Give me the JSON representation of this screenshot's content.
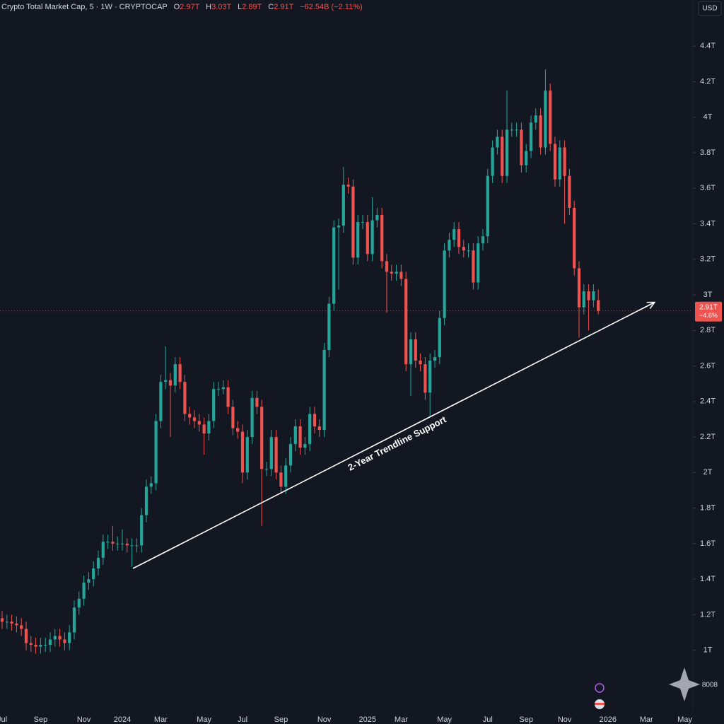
{
  "chart_data": {
    "type": "candlestick",
    "title": "Crypto Total Market Cap, 5 · 1W · CRYPTOCAP",
    "legend_labels": [
      {
        "key": "O",
        "value": "2.97T"
      },
      {
        "key": "H",
        "value": "3.03T"
      },
      {
        "key": "L",
        "value": "2.89T"
      },
      {
        "key": "C",
        "value": "2.91T"
      }
    ],
    "change_label": "−62.54B (−2.11%)",
    "currency": "USD",
    "last_price_label": "2.91T",
    "last_price_change": "−4.6%",
    "corner_label": "8008",
    "annotation": "2-Year Trendline Support",
    "up_color": "#26a69a",
    "down_color": "#ef5350",
    "grid": false,
    "ylim": [
      0.68,
      4.66
    ],
    "yticks": [
      {
        "value": 1,
        "label": "1T"
      },
      {
        "value": 1.2,
        "label": "1.2T"
      },
      {
        "value": 1.4,
        "label": "1.4T"
      },
      {
        "value": 1.6,
        "label": "1.6T"
      },
      {
        "value": 1.8,
        "label": "1.8T"
      },
      {
        "value": 2,
        "label": "2T"
      },
      {
        "value": 2.2,
        "label": "2.2T"
      },
      {
        "value": 2.4,
        "label": "2.4T"
      },
      {
        "value": 2.6,
        "label": "2.6T"
      },
      {
        "value": 2.8,
        "label": "2.8T"
      },
      {
        "value": 3,
        "label": "3T"
      },
      {
        "value": 3.2,
        "label": "3.2T"
      },
      {
        "value": 3.4,
        "label": "3.4T"
      },
      {
        "value": 3.6,
        "label": "3.6T"
      },
      {
        "value": 3.8,
        "label": "3.8T"
      },
      {
        "value": 4,
        "label": "4T"
      },
      {
        "value": 4.2,
        "label": "4.2T"
      },
      {
        "value": 4.4,
        "label": "4.4T"
      }
    ],
    "categories": [
      "Jul",
      null,
      null,
      null,
      null,
      null,
      null,
      null,
      "Sep",
      null,
      null,
      null,
      null,
      null,
      null,
      null,
      null,
      "Nov",
      null,
      null,
      null,
      null,
      null,
      null,
      null,
      "2024",
      null,
      null,
      null,
      null,
      null,
      null,
      null,
      "Mar",
      null,
      null,
      null,
      null,
      null,
      null,
      null,
      null,
      "May",
      null,
      null,
      null,
      null,
      null,
      null,
      null,
      "Jul",
      null,
      null,
      null,
      null,
      null,
      null,
      null,
      "Sep",
      null,
      null,
      null,
      null,
      null,
      null,
      null,
      null,
      "Nov",
      null,
      null,
      null,
      null,
      null,
      null,
      null,
      null,
      "2025",
      null,
      null,
      null,
      null,
      null,
      null,
      "Mar",
      null,
      null,
      null,
      null,
      null,
      null,
      null,
      null,
      "May",
      null,
      null,
      null,
      null,
      null,
      null,
      null,
      null,
      "Jul",
      null,
      null,
      null,
      null,
      null,
      null,
      null,
      "Sep",
      null,
      null,
      null,
      null,
      null,
      null,
      null,
      "Nov",
      null,
      null,
      null,
      null,
      null,
      null,
      null,
      null,
      "2026",
      null,
      null,
      null,
      null,
      null,
      null,
      null,
      "Mar",
      null,
      null,
      null,
      null,
      null,
      null,
      null,
      "May"
    ],
    "open": [
      1.18,
      1.16,
      1.16,
      1.15,
      1.14,
      1.12,
      1.04,
      1.03,
      1.02,
      1.03,
      1.03,
      1.06,
      1.08,
      1.06,
      1.04,
      1.1,
      1.24,
      1.29,
      1.38,
      1.4,
      1.46,
      1.52,
      1.61,
      1.61,
      1.6,
      1.6,
      1.6,
      1.59,
      1.59,
      1.59,
      1.76,
      1.92,
      1.94,
      2.29,
      2.51,
      2.52,
      2.49,
      2.61,
      2.51,
      2.33,
      2.31,
      2.29,
      2.27,
      2.22,
      2.29,
      2.47,
      2.47,
      2.48,
      2.37,
      2.25,
      2.23,
      2.0,
      2.2,
      2.42,
      2.37,
      2.02,
      2.02,
      2.2,
      2.0,
      1.92,
      2.04,
      2.16,
      2.26,
      2.14,
      2.16,
      2.33,
      2.26,
      2.24,
      2.69,
      2.95,
      3.38,
      3.39,
      3.62,
      3.61,
      3.21,
      3.41,
      3.41,
      3.23,
      3.42,
      3.45,
      3.19,
      3.13,
      3.12,
      3.13,
      3.09,
      2.61,
      2.75,
      2.63,
      2.61,
      2.45,
      2.63,
      2.65,
      2.87,
      3.25,
      3.31,
      3.37,
      3.27,
      3.25,
      3.25,
      3.07,
      3.29,
      3.33,
      3.67,
      3.83,
      3.89,
      3.67,
      3.93,
      3.93,
      3.93,
      3.73,
      3.81,
      3.97,
      4.01,
      3.83,
      4.15,
      3.85,
      3.65,
      3.83,
      3.67,
      3.49,
      3.15,
      2.93,
      3.02,
      2.97,
      2.97,
      null,
      null,
      null,
      null,
      null,
      null,
      null,
      null,
      null,
      null,
      null,
      null,
      null,
      null,
      null,
      null,
      null,
      null
    ],
    "high": [
      1.22,
      1.2,
      1.2,
      1.19,
      1.18,
      1.16,
      1.08,
      1.07,
      1.07,
      1.07,
      1.1,
      1.12,
      1.12,
      1.1,
      1.14,
      1.28,
      1.33,
      1.42,
      1.44,
      1.5,
      1.56,
      1.65,
      1.65,
      1.7,
      1.64,
      1.68,
      1.63,
      1.63,
      1.63,
      1.8,
      1.96,
      1.98,
      2.33,
      2.55,
      2.71,
      2.56,
      2.65,
      2.65,
      2.55,
      2.37,
      2.35,
      2.33,
      2.31,
      2.33,
      2.51,
      2.51,
      2.52,
      2.52,
      2.41,
      2.29,
      2.27,
      2.24,
      2.46,
      2.46,
      2.41,
      2.06,
      2.24,
      2.24,
      2.04,
      2.08,
      2.2,
      2.3,
      2.3,
      2.2,
      2.37,
      2.37,
      2.3,
      2.73,
      2.99,
      3.42,
      3.43,
      3.72,
      3.66,
      3.65,
      3.45,
      3.45,
      3.45,
      3.55,
      3.49,
      3.49,
      3.23,
      3.17,
      3.17,
      3.17,
      3.13,
      2.79,
      2.79,
      2.67,
      2.65,
      2.67,
      2.69,
      2.91,
      3.29,
      3.35,
      3.41,
      3.41,
      3.31,
      3.29,
      3.29,
      3.33,
      3.37,
      3.71,
      3.87,
      3.93,
      3.93,
      4.15,
      3.97,
      3.97,
      3.97,
      3.85,
      4.01,
      4.05,
      4.05,
      4.27,
      4.19,
      3.89,
      3.87,
      3.87,
      3.71,
      3.53,
      3.19,
      3.06,
      3.06,
      3.06,
      3.03,
      null,
      null,
      null,
      null,
      null,
      null,
      null,
      null,
      null,
      null,
      null,
      null,
      null,
      null,
      null,
      null,
      null,
      null
    ],
    "low": [
      1.12,
      1.12,
      1.11,
      1.1,
      1.08,
      1.0,
      0.99,
      0.98,
      0.98,
      0.99,
      0.99,
      1.02,
      1.02,
      1.0,
      1.0,
      1.06,
      1.2,
      1.25,
      1.34,
      1.36,
      1.42,
      1.48,
      1.57,
      1.56,
      1.56,
      1.56,
      1.55,
      1.47,
      1.55,
      1.55,
      1.72,
      1.88,
      1.9,
      2.25,
      2.47,
      2.2,
      2.45,
      2.47,
      2.29,
      2.27,
      2.25,
      2.23,
      2.1,
      2.18,
      2.25,
      2.43,
      2.44,
      2.33,
      2.21,
      2.19,
      1.94,
      1.96,
      2.16,
      2.33,
      1.7,
      1.98,
      1.98,
      1.96,
      1.88,
      1.88,
      2.0,
      2.12,
      2.1,
      2.1,
      2.12,
      2.22,
      2.2,
      2.2,
      2.65,
      2.91,
      3.03,
      3.35,
      3.57,
      3.17,
      3.17,
      3.37,
      3.19,
      3.19,
      3.38,
      3.15,
      2.9,
      3.08,
      3.08,
      3.05,
      2.57,
      2.43,
      2.59,
      2.57,
      2.41,
      2.31,
      2.59,
      2.61,
      2.83,
      3.21,
      3.27,
      3.23,
      3.21,
      3.21,
      3.03,
      3.03,
      3.25,
      3.29,
      3.63,
      3.79,
      3.63,
      3.63,
      3.89,
      3.89,
      3.69,
      3.69,
      3.77,
      3.93,
      3.79,
      3.79,
      3.81,
      3.61,
      3.61,
      3.4,
      3.45,
      3.11,
      2.76,
      2.89,
      2.8,
      2.93,
      2.89,
      null,
      null,
      null,
      null,
      null,
      null,
      null,
      null,
      null,
      null,
      null,
      null,
      null,
      null,
      null,
      null,
      null,
      null
    ],
    "close": [
      1.16,
      1.16,
      1.15,
      1.14,
      1.12,
      1.04,
      1.03,
      1.02,
      1.03,
      1.03,
      1.06,
      1.08,
      1.06,
      1.04,
      1.1,
      1.24,
      1.29,
      1.38,
      1.4,
      1.46,
      1.52,
      1.61,
      1.61,
      1.6,
      1.6,
      1.6,
      1.59,
      1.59,
      1.59,
      1.76,
      1.92,
      1.94,
      2.29,
      2.51,
      2.52,
      2.49,
      2.61,
      2.51,
      2.33,
      2.31,
      2.29,
      2.27,
      2.22,
      2.29,
      2.47,
      2.47,
      2.48,
      2.37,
      2.25,
      2.23,
      2.0,
      2.2,
      2.42,
      2.37,
      2.02,
      2.02,
      2.2,
      2.0,
      1.92,
      2.04,
      2.16,
      2.26,
      2.14,
      2.16,
      2.33,
      2.26,
      2.24,
      2.69,
      2.95,
      3.38,
      3.39,
      3.62,
      3.61,
      3.21,
      3.41,
      3.41,
      3.23,
      3.42,
      3.45,
      3.19,
      3.13,
      3.12,
      3.13,
      3.09,
      2.61,
      2.75,
      2.63,
      2.61,
      2.45,
      2.63,
      2.65,
      2.87,
      3.25,
      3.31,
      3.37,
      3.27,
      3.25,
      3.25,
      3.07,
      3.29,
      3.33,
      3.67,
      3.83,
      3.89,
      3.67,
      3.93,
      3.93,
      3.93,
      3.73,
      3.81,
      3.97,
      4.01,
      3.83,
      4.15,
      3.85,
      3.65,
      3.83,
      3.67,
      3.49,
      3.15,
      2.93,
      3.02,
      2.97,
      3.02,
      2.91,
      null,
      null,
      null,
      null,
      null,
      null,
      null,
      null,
      null,
      null,
      null,
      null,
      null,
      null,
      null,
      null,
      null,
      null
    ]
  }
}
